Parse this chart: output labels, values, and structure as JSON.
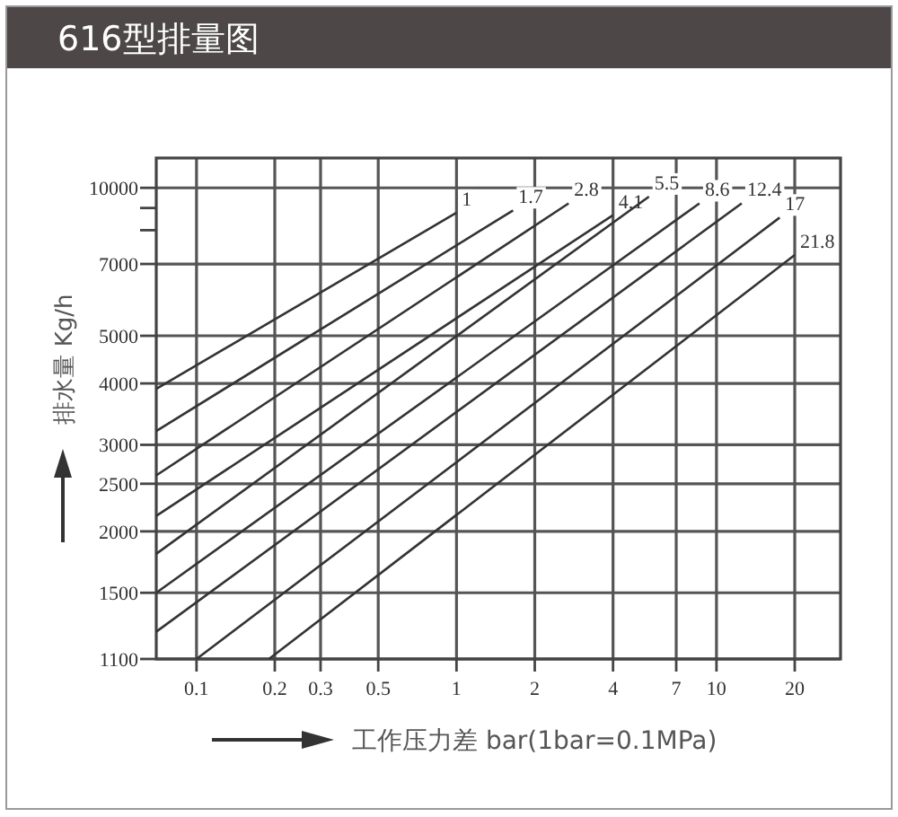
{
  "chart_data": {
    "type": "line",
    "title": "616型排量图",
    "xlabel": "工作压力差 bar(1bar=0.1MPa)",
    "ylabel": "排水量 Kg/h",
    "log": "xy",
    "grid": true,
    "marker": "none",
    "line_style": "solid",
    "xlim": [
      0.07,
      30
    ],
    "ylim": [
      1100,
      11500
    ],
    "xticks": [
      0.1,
      0.2,
      0.3,
      0.5,
      1,
      2,
      4,
      7,
      10,
      20
    ],
    "yticks": [
      1100,
      1500,
      2000,
      2500,
      3000,
      4000,
      5000,
      7000,
      {
        "value": 8200,
        "label": null
      },
      {
        "value": 9100,
        "label": null
      },
      10000
    ],
    "series": [
      {
        "name": "1",
        "color": "#333333",
        "x": [
          0.07,
          1
        ],
        "values": [
          3900,
          8900
        ]
      },
      {
        "name": "1.7",
        "color": "#333333",
        "x": [
          0.07,
          1.65
        ],
        "values": [
          3200,
          9000
        ]
      },
      {
        "name": "2.8",
        "color": "#333333",
        "x": [
          0.07,
          2.7
        ],
        "values": [
          2600,
          9300
        ]
      },
      {
        "name": "4.1",
        "color": "#333333",
        "x": [
          0.07,
          4
        ],
        "values": [
          2150,
          8800
        ]
      },
      {
        "name": "5.5",
        "color": "#333333",
        "x": [
          0.07,
          5.5
        ],
        "values": [
          1800,
          9600
        ]
      },
      {
        "name": "8.6",
        "color": "#333333",
        "x": [
          0.07,
          8.6
        ],
        "values": [
          1500,
          9300
        ]
      },
      {
        "name": "12.4",
        "color": "#333333",
        "x": [
          0.07,
          12.5
        ],
        "values": [
          1250,
          9300
        ]
      },
      {
        "name": "17",
        "color": "#333333",
        "x": [
          0.1,
          17.5
        ],
        "values": [
          1100,
          8700
        ]
      },
      {
        "name": "21.8",
        "color": "#333333",
        "x": [
          0.19,
          20
        ],
        "values": [
          1100,
          7300
        ]
      }
    ]
  }
}
